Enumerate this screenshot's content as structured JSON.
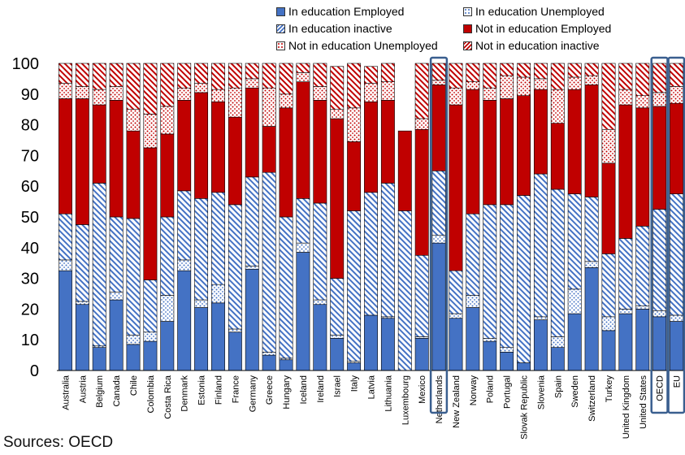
{
  "legend": {
    "items": [
      {
        "label": "In education Employed",
        "key": "ie_emp"
      },
      {
        "label": "In education Unemployed",
        "key": "ie_unemp"
      },
      {
        "label": "In education inactive",
        "key": "ie_inact"
      },
      {
        "label": "Not in education Employed",
        "key": "ne_emp"
      },
      {
        "label": "Not in education Unemployed",
        "key": "ne_unemp"
      },
      {
        "label": "Not in education inactive",
        "key": "ne_inact"
      }
    ]
  },
  "source": "Sources: OECD",
  "colors": {
    "ie_emp": "#4472c4",
    "ie_unemp_bg": "#ffffff",
    "ie_unemp_fg": "#4472c4",
    "ie_inact_fg": "#4472c4",
    "ne_emp": "#c00000",
    "ne_unemp_fg": "#c00000",
    "ne_inact_fg": "#c00000",
    "highlight_box": "#3a5f8f"
  },
  "chart_data": {
    "type": "bar",
    "stacked": true,
    "ylim": [
      0,
      100
    ],
    "yticks": [
      0,
      10,
      20,
      30,
      40,
      50,
      60,
      70,
      80,
      90,
      100
    ],
    "grid": false,
    "legend_position": "top",
    "categories": [
      "Australia",
      "Austria",
      "Belgium",
      "Canada",
      "Chile",
      "Colombia",
      "Costa Rica",
      "Denmark",
      "Estonia",
      "Finland",
      "France",
      "Germany",
      "Greece",
      "Hungary",
      "Iceland",
      "Ireland",
      "Israel",
      "Italy",
      "Latvia",
      "Lithuania",
      "Luxembourg",
      "Mexico",
      "Netherlands",
      "New Zealand",
      "Norway",
      "Poland",
      "Portugal",
      "Slovak Republic",
      "Slovenia",
      "Spain",
      "Sweden",
      "Switzerland",
      "Turkey",
      "United Kingdom",
      "United States",
      "OECD",
      "EU"
    ],
    "highlighted": [
      "Netherlands",
      "OECD",
      "EU"
    ],
    "series": [
      {
        "name": "In education Employed",
        "key": "ie_emp",
        "values": [
          32.5,
          21.5,
          7.5,
          23,
          8.5,
          9.5,
          16,
          32.5,
          20.5,
          22,
          12.5,
          33,
          5,
          3.5,
          38.5,
          21.5,
          10.5,
          2.5,
          18,
          17,
          0,
          10.5,
          41.5,
          17,
          20.5,
          9.5,
          6,
          2.5,
          16.5,
          7.5,
          18.5,
          33.5,
          13,
          18.5,
          20,
          17.5,
          16
        ]
      },
      {
        "name": "In education Unemployed",
        "key": "ie_unemp",
        "values": [
          3.5,
          1,
          0.5,
          2.5,
          3,
          3,
          8.5,
          3.5,
          2.5,
          6,
          1,
          1,
          1,
          0.5,
          3,
          1.5,
          1,
          0.5,
          0,
          0.5,
          0,
          0.5,
          2.5,
          1.5,
          4,
          1,
          1.5,
          0,
          1,
          3.5,
          8,
          2,
          4.5,
          1.5,
          1,
          2,
          2
        ]
      },
      {
        "name": "In education inactive",
        "key": "ie_inact",
        "values": [
          15,
          25,
          53,
          24.5,
          38,
          17,
          25.5,
          22.5,
          33,
          30,
          40.5,
          29,
          58.5,
          46,
          14.5,
          31.5,
          18.5,
          49,
          40,
          43.5,
          52,
          26.5,
          21,
          14,
          26.5,
          43.5,
          46.5,
          54.5,
          46.5,
          48,
          31,
          21,
          20.5,
          23,
          26,
          33,
          39.5
        ]
      },
      {
        "name": "Not in education Employed",
        "key": "ne_emp",
        "values": [
          37.5,
          41,
          25.5,
          38,
          28.5,
          43,
          27,
          29.5,
          34.5,
          29.5,
          28.5,
          29,
          15,
          35.5,
          38,
          33.5,
          52,
          22.5,
          29.5,
          27,
          26,
          41,
          28,
          54,
          40.5,
          34,
          34.5,
          32.5,
          27.5,
          21.5,
          34,
          36.5,
          29.5,
          43.5,
          38.5,
          33.5,
          29.5
        ]
      },
      {
        "name": "Not in education Unemployed",
        "key": "ne_unemp",
        "values": [
          5,
          4,
          5,
          4.5,
          7,
          11,
          9,
          4,
          3,
          4,
          9.5,
          3,
          12.5,
          4.5,
          3,
          4.5,
          3,
          11,
          6,
          6,
          0,
          3.5,
          1.5,
          5.5,
          2.5,
          4,
          7.5,
          6,
          3.5,
          11,
          4,
          3,
          11,
          5,
          4,
          4.5,
          5.5
        ]
      },
      {
        "name": "Not in education inactive",
        "key": "ne_inact",
        "values": [
          6.5,
          7.5,
          8.5,
          7.5,
          15,
          16.5,
          14,
          8,
          6.5,
          8.5,
          8,
          5,
          8,
          10,
          3,
          7.5,
          14,
          14.5,
          5.5,
          6,
          0,
          18,
          5.5,
          8,
          6,
          8,
          4,
          4.5,
          5,
          8.5,
          4.5,
          4,
          21.5,
          8.5,
          10.5,
          9.5,
          7.5
        ]
      }
    ]
  }
}
